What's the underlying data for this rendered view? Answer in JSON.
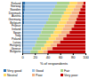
{
  "chart_data": {
    "type": "bar",
    "orientation": "horizontal",
    "stacked": true,
    "x_label": "% of respondents",
    "categories": [
      "Finland",
      "Norway",
      "Sweden",
      "Denmark",
      "Austria",
      "Germany",
      "Belgium",
      "France",
      "Ireland",
      "Spain",
      "Italy",
      "Poland",
      "Latvia",
      "Hungary",
      "Greece",
      "Bulgaria"
    ],
    "series": [
      {
        "name": "Very good",
        "color": "#2e75b6",
        "values": [
          5,
          4,
          4,
          3,
          3,
          3,
          3,
          2,
          2,
          2,
          2,
          2,
          2,
          2,
          1,
          1
        ]
      },
      {
        "name": "Good",
        "color": "#9dc3e6",
        "values": [
          50,
          48,
          45,
          43,
          40,
          38,
          35,
          33,
          30,
          28,
          25,
          22,
          20,
          18,
          15,
          12
        ]
      },
      {
        "name": "Fair",
        "color": "#a9d18e",
        "values": [
          20,
          20,
          20,
          20,
          20,
          20,
          20,
          20,
          20,
          20,
          18,
          18,
          16,
          15,
          14,
          12
        ]
      },
      {
        "name": "Neutral",
        "color": "#ffd966",
        "values": [
          12,
          12,
          12,
          12,
          12,
          12,
          12,
          12,
          12,
          12,
          12,
          11,
          11,
          10,
          9,
          8
        ]
      },
      {
        "name": "Poor",
        "color": "#f4b183",
        "values": [
          10,
          11,
          11,
          12,
          13,
          13,
          14,
          15,
          14,
          13,
          13,
          12,
          11,
          10,
          9,
          7
        ]
      },
      {
        "name": "Very poor",
        "color": "#c00000",
        "values": [
          3,
          5,
          8,
          10,
          12,
          14,
          16,
          18,
          22,
          25,
          30,
          35,
          40,
          45,
          52,
          60
        ]
      }
    ],
    "xlim": [
      0,
      100
    ],
    "xticks": [
      0,
      20,
      40,
      60,
      80,
      100
    ],
    "legend": "bottom"
  }
}
